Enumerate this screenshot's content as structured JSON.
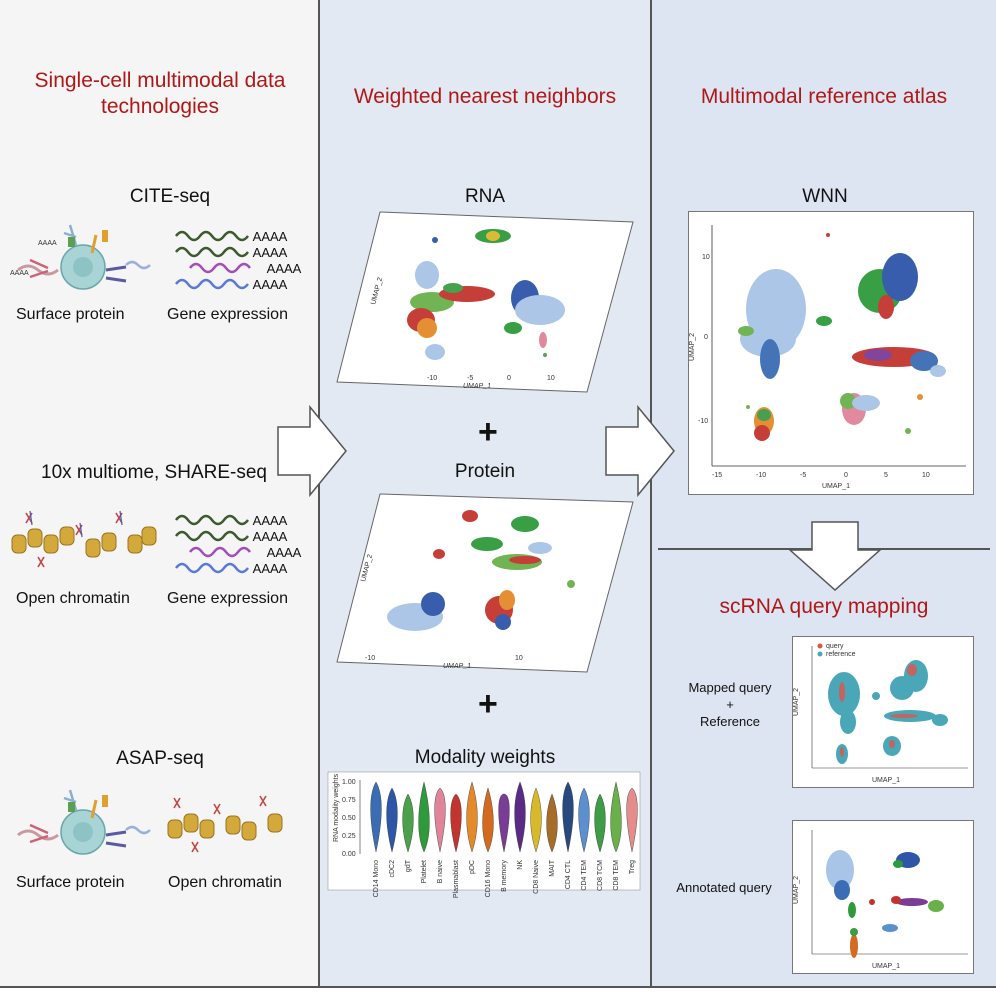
{
  "col1": {
    "title": "Single-cell multimodal data technologies",
    "tech1": {
      "name": "CITE-seq",
      "left": "Surface protein",
      "right": "Gene expression"
    },
    "tech2": {
      "name": "10x multiome, SHARE-seq",
      "left": "Open chromatin",
      "right": "Gene expression"
    },
    "tech3": {
      "name": "ASAP-seq",
      "left": "Surface protein",
      "right": "Open chromatin"
    },
    "polyA": "AAAA"
  },
  "col2": {
    "title": "Weighted nearest neighbors",
    "rna": "RNA",
    "protein": "Protein",
    "weights": "Modality weights",
    "plus": "+",
    "umap_x": "UMAP_1",
    "umap_y": "UMAP_2",
    "violin_ylabel": "RNA modality weights",
    "violin_categories": [
      "CD14 Mono",
      "cDC2",
      "gdT",
      "Platelet",
      "B naive",
      "Plasmablast",
      "pDC",
      "CD16 Mono",
      "B memory",
      "NK",
      "CD8 Naive",
      "MAIT",
      "CD4 CTL",
      "CD4 TEM",
      "CD8 TCM",
      "CD8 TEM",
      "Treg"
    ],
    "violin_colors": [
      "#3b6db4",
      "#2d55a8",
      "#4ba04c",
      "#2f9a3b",
      "#e0849a",
      "#c4342e",
      "#e48a2a",
      "#d46a1f",
      "#7a3d96",
      "#5b2a84",
      "#d9b82b",
      "#a56c2a",
      "#27497e",
      "#5c8fd0",
      "#3e9b46",
      "#6ab04a",
      "#e58c8c"
    ],
    "violin_yticks": [
      "1.00",
      "0.75",
      "0.50",
      "0.25",
      "0.00"
    ]
  },
  "col3": {
    "title": "Multimodal reference atlas",
    "wnn": "WNN",
    "wnn_x": "UMAP_1",
    "wnn_y": "UMAP_2",
    "wnn_xticks": [
      "-15",
      "-10",
      "-5",
      "0",
      "5",
      "10"
    ],
    "wnn_yticks": [
      "10",
      "0",
      "-10"
    ],
    "query_title": "scRNA query mapping",
    "mapped_label_1": "Mapped query",
    "mapped_plus": "+",
    "mapped_label_2": "Reference",
    "legend_query": "query",
    "legend_reference": "reference",
    "annotated": "Annotated query",
    "query_color": "#e0544a",
    "reference_color": "#4aa7b8"
  }
}
